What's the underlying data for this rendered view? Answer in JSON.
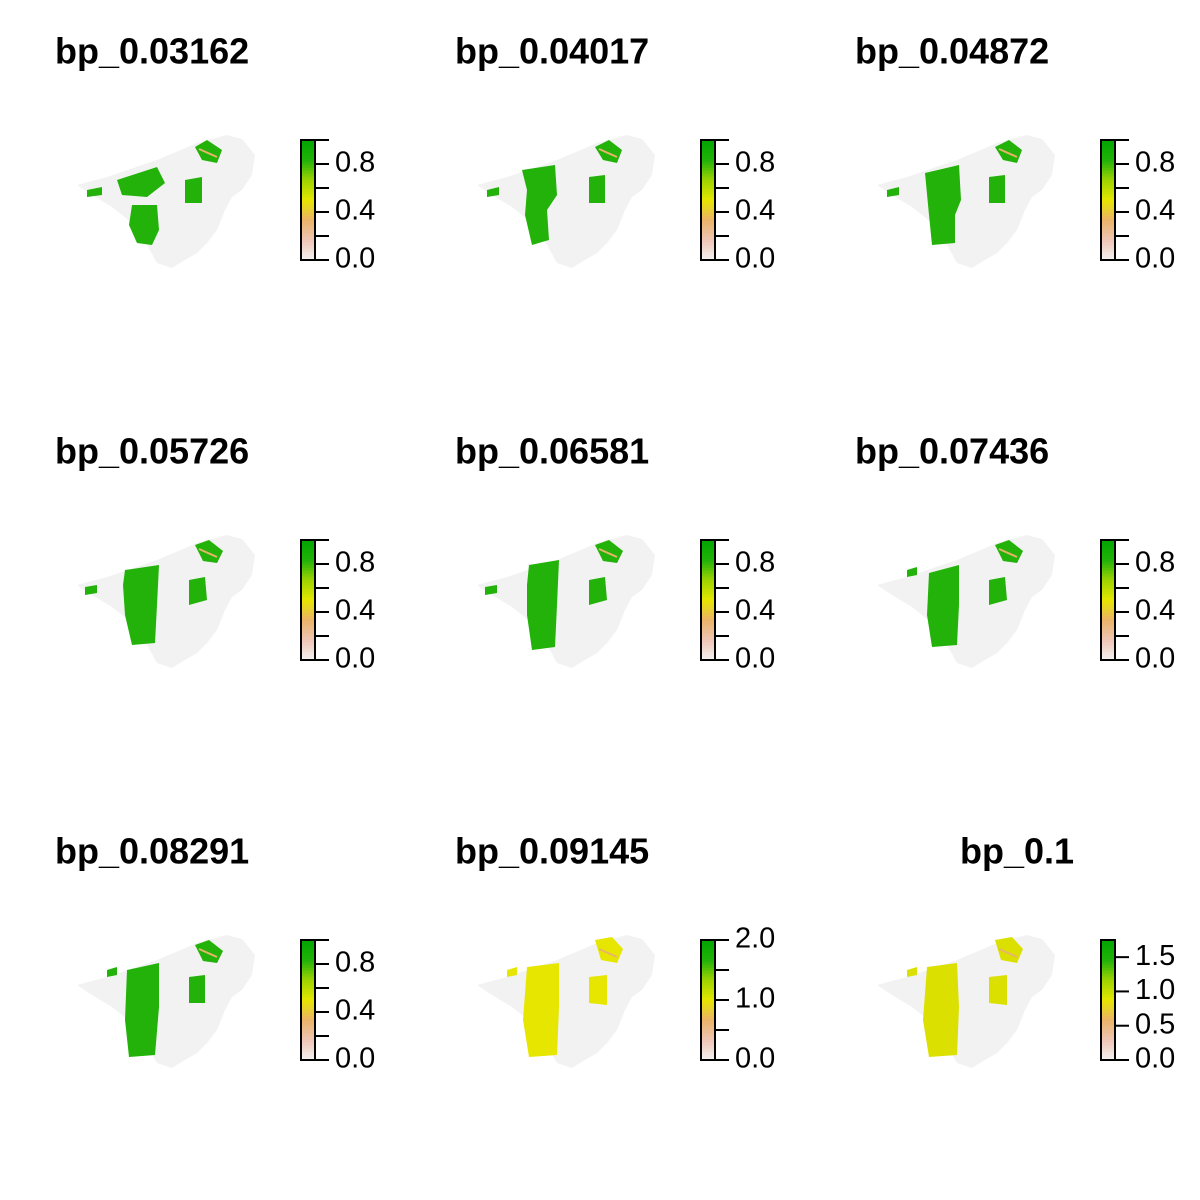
{
  "colors": {
    "background_na": "#f2f2f2",
    "green": "#22b209",
    "yellow": "#e6e600",
    "yellow_alt": "#dbe000",
    "ramp": [
      "#f2f2f2",
      "#eec6b6",
      "#ebb26a",
      "#e6e600",
      "#9fd300",
      "#22b209",
      "#00a600"
    ]
  },
  "chart_data": [
    {
      "type": "heatmap",
      "title": "bp_0.03162",
      "fill": "green",
      "legend": {
        "min": 0,
        "max": 1,
        "ticks": [
          0.0,
          0.2,
          0.4,
          0.6,
          0.8,
          1.0
        ],
        "tick_labels": [
          "0.0",
          "0.4",
          "0.8"
        ]
      }
    },
    {
      "type": "heatmap",
      "title": "bp_0.04017",
      "fill": "green",
      "legend": {
        "min": 0,
        "max": 1,
        "ticks": [
          0.0,
          0.2,
          0.4,
          0.6,
          0.8,
          1.0
        ],
        "tick_labels": [
          "0.0",
          "0.4",
          "0.8"
        ]
      }
    },
    {
      "type": "heatmap",
      "title": "bp_0.04872",
      "fill": "green",
      "legend": {
        "min": 0,
        "max": 1,
        "ticks": [
          0.0,
          0.2,
          0.4,
          0.6,
          0.8,
          1.0
        ],
        "tick_labels": [
          "0.0",
          "0.4",
          "0.8"
        ]
      }
    },
    {
      "type": "heatmap",
      "title": "bp_0.05726",
      "fill": "green",
      "legend": {
        "min": 0,
        "max": 1,
        "ticks": [
          0.0,
          0.2,
          0.4,
          0.6,
          0.8,
          1.0
        ],
        "tick_labels": [
          "0.0",
          "0.4",
          "0.8"
        ]
      }
    },
    {
      "type": "heatmap",
      "title": "bp_0.06581",
      "fill": "green",
      "legend": {
        "min": 0,
        "max": 1,
        "ticks": [
          0.0,
          0.2,
          0.4,
          0.6,
          0.8,
          1.0
        ],
        "tick_labels": [
          "0.0",
          "0.4",
          "0.8"
        ]
      }
    },
    {
      "type": "heatmap",
      "title": "bp_0.07436",
      "fill": "green",
      "legend": {
        "min": 0,
        "max": 1,
        "ticks": [
          0.0,
          0.2,
          0.4,
          0.6,
          0.8,
          1.0
        ],
        "tick_labels": [
          "0.0",
          "0.4",
          "0.8"
        ]
      }
    },
    {
      "type": "heatmap",
      "title": "bp_0.08291",
      "fill": "green",
      "legend": {
        "min": 0,
        "max": 1,
        "ticks": [
          0.0,
          0.2,
          0.4,
          0.6,
          0.8,
          1.0
        ],
        "tick_labels": [
          "0.0",
          "0.4",
          "0.8"
        ]
      }
    },
    {
      "type": "heatmap",
      "title": "bp_0.09145",
      "fill": "yellow",
      "legend": {
        "min": 0,
        "max": 2,
        "ticks": [
          0.0,
          0.5,
          1.0,
          1.5,
          2.0
        ],
        "tick_labels": [
          "0.0",
          "1.0",
          "2.0"
        ]
      }
    },
    {
      "type": "heatmap",
      "title": "bp_0.1",
      "fill": "yellow_alt",
      "legend": {
        "min": 0,
        "max": 1.75,
        "ticks": [
          0.0,
          0.5,
          1.0,
          1.5
        ],
        "tick_labels": [
          "0.0",
          "0.5",
          "1.0",
          "1.5"
        ]
      }
    }
  ]
}
